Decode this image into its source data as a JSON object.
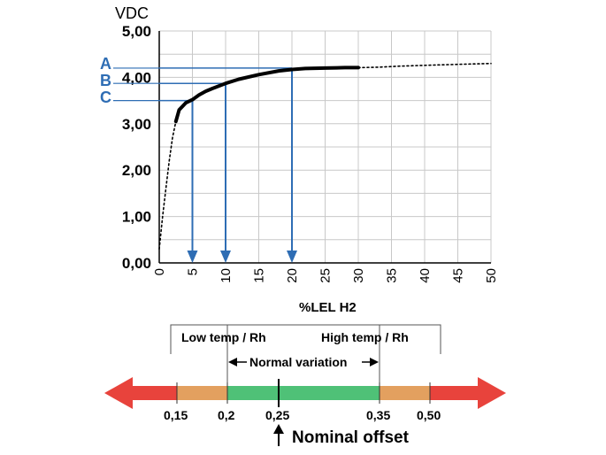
{
  "chart_data": {
    "type": "line",
    "title": "",
    "ylabel": "VDC",
    "xlabel": "%LEL H2",
    "xlim": [
      0,
      50
    ],
    "ylim": [
      0,
      5
    ],
    "x_ticks": [
      "0",
      "5",
      "10",
      "15",
      "20",
      "25",
      "30",
      "35",
      "40",
      "45",
      "50"
    ],
    "y_ticks": [
      "0,00",
      "1,00",
      "2,00",
      "3,00",
      "4,00",
      "5,00"
    ],
    "grid": true,
    "series": [
      {
        "style": "solid",
        "color": "#000000",
        "x": [
          2.5,
          3,
          4,
          5,
          6,
          7,
          8,
          10,
          12,
          15,
          18,
          20,
          22,
          25,
          28,
          30
        ],
        "y": [
          3.05,
          3.3,
          3.45,
          3.52,
          3.62,
          3.7,
          3.76,
          3.87,
          3.96,
          4.06,
          4.14,
          4.17,
          4.19,
          4.2,
          4.21,
          4.21
        ]
      },
      {
        "style": "dotted",
        "color": "#000000",
        "x": [
          0,
          0.5,
          1,
          1.5,
          2,
          2.5
        ],
        "y": [
          0.3,
          1.0,
          1.6,
          2.2,
          2.7,
          3.05
        ]
      },
      {
        "style": "dotted",
        "color": "#000000",
        "x": [
          30,
          33,
          36,
          40,
          45,
          50
        ],
        "y": [
          4.21,
          4.22,
          4.24,
          4.26,
          4.28,
          4.3
        ]
      }
    ],
    "markers": [
      {
        "label": "A",
        "y": 4.2,
        "x": 20
      },
      {
        "label": "B",
        "y": 3.87,
        "x": 10
      },
      {
        "label": "C",
        "y": 3.5,
        "x": 5
      }
    ],
    "marker_color": "#2e6db4"
  },
  "scale": {
    "ticks": [
      "0,15",
      "0,2",
      "0,25",
      "0,35",
      "0,50"
    ],
    "low_label": "Low temp / Rh",
    "high_label": "High temp / Rh",
    "normal_label": "Normal variation",
    "nominal_label": "Nominal offset",
    "colors": {
      "red": "#e8433c",
      "orange": "#e3a05f",
      "green": "#4fc177"
    }
  }
}
